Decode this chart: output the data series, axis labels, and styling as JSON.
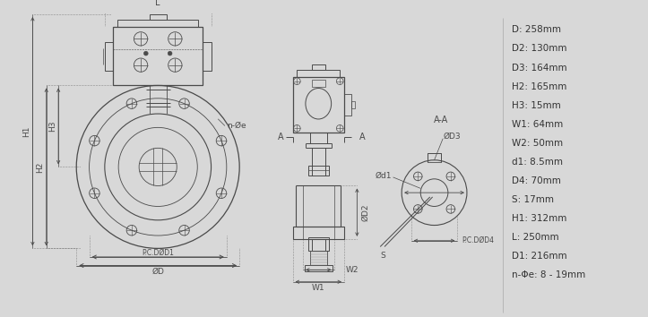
{
  "bg_color": "#d8d8d8",
  "line_color": "#4a4a4a",
  "specs": [
    "D: 258mm",
    "D2: 130mm",
    "D3: 164mm",
    "H2: 165mm",
    "H3: 15mm",
    "W1: 64mm",
    "W2: 50mm",
    "d1: 8.5mm",
    "D4: 70mm",
    "S: 17mm",
    "H1: 312mm",
    "L: 250mm",
    "D1: 216mm",
    "n-Φe: 8 - 19mm"
  ]
}
